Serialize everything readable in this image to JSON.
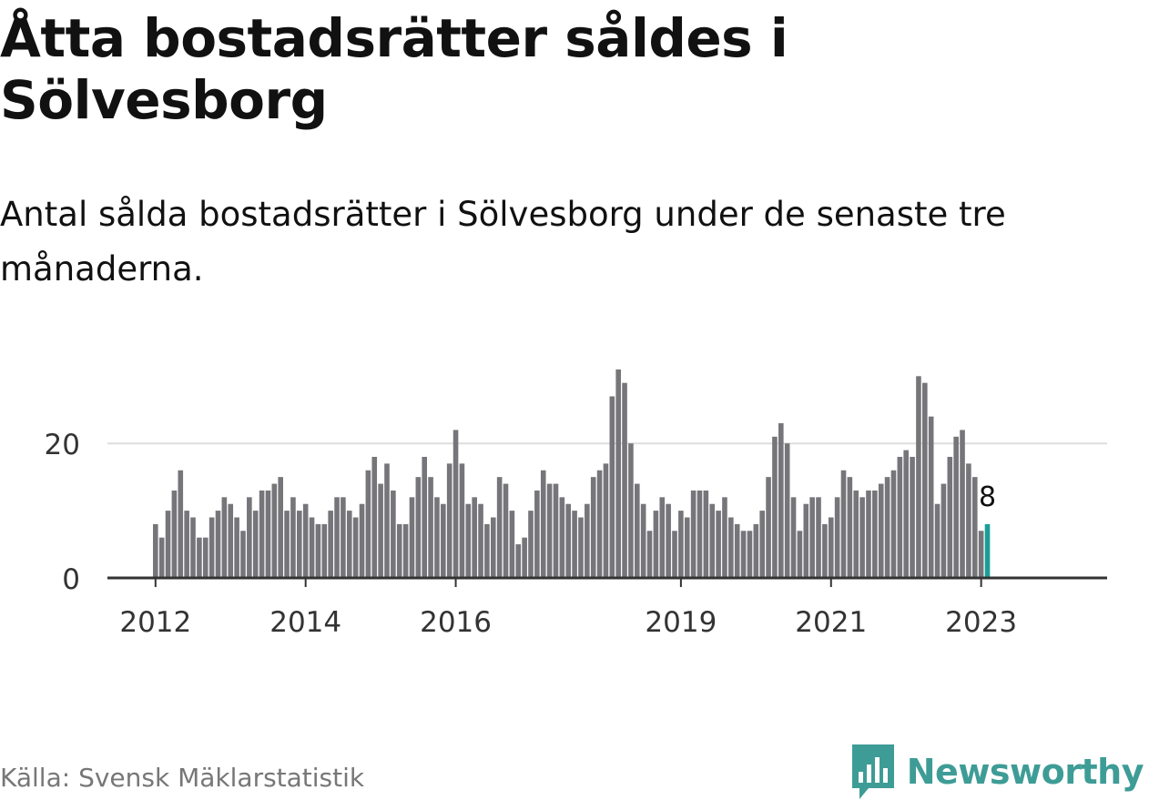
{
  "title": "Åtta bostadsrätter såldes i Sölvesborg",
  "subtitle": "Antal sålda bostadsrätter i Sölvesborg under de senaste tre månaderna.",
  "source": "Källa: Svensk Mäklarstatistik",
  "brand": "Newsworthy",
  "colors": {
    "bar": "#76767a",
    "highlight": "#1a9e96",
    "brand": "#3e9c96",
    "grid": "#dddddd",
    "axis": "#333333"
  },
  "chart_data": {
    "type": "bar",
    "xlabel": "",
    "ylabel": "",
    "x_tick_labels": [
      "2012",
      "2014",
      "2016",
      "2019",
      "2021",
      "2023"
    ],
    "y_ticks": [
      0,
      20
    ],
    "ylim": [
      0,
      32
    ],
    "grid": true,
    "highlight_label": "8",
    "series": [
      {
        "values": [
          8,
          6,
          10,
          13,
          16,
          10,
          9,
          6,
          6,
          9,
          10,
          12,
          11,
          9,
          7,
          12,
          10,
          13,
          13,
          14,
          15,
          10,
          12,
          10,
          11,
          9,
          8,
          8,
          10,
          12,
          12,
          10,
          9,
          11,
          16,
          18,
          14,
          17,
          13,
          8,
          8,
          12,
          15,
          18,
          15,
          12,
          11,
          17,
          22,
          17,
          11,
          12,
          11,
          8,
          9,
          15,
          14,
          10,
          5,
          6,
          10,
          13,
          16,
          14,
          14,
          12,
          11,
          10,
          9,
          11,
          15,
          16,
          17,
          27,
          31,
          29,
          20,
          14,
          11,
          7,
          10,
          12,
          11,
          7,
          10,
          9,
          13,
          13,
          13,
          11,
          10,
          12,
          9,
          8,
          7,
          7,
          8,
          10,
          15,
          21,
          23,
          20,
          12,
          7,
          11,
          12,
          12,
          8,
          9,
          12,
          16,
          15,
          13,
          12,
          13,
          13,
          14,
          15,
          16,
          18,
          19,
          18,
          30,
          29,
          24,
          11,
          14,
          18,
          21,
          22,
          17,
          15,
          7,
          8
        ]
      }
    ]
  }
}
